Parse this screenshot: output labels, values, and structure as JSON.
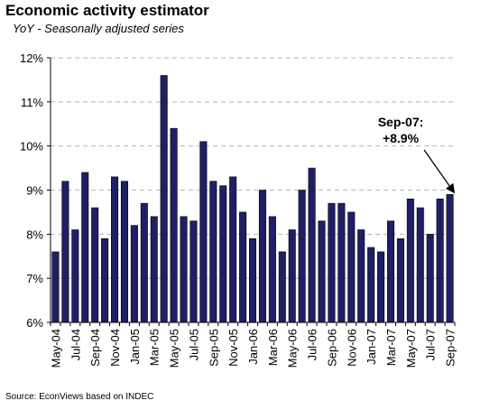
{
  "chart_data": {
    "type": "bar",
    "title": "Economic activity estimator",
    "subtitle": "YoY - Seasonally adjusted series",
    "source": "Source: EconViews based on INDEC",
    "x": [
      "May-04",
      "Jun-04",
      "Jul-04",
      "Aug-04",
      "Sep-04",
      "Oct-04",
      "Nov-04",
      "Dec-04",
      "Jan-05",
      "Feb-05",
      "Mar-05",
      "Apr-05",
      "May-05",
      "Jun-05",
      "Jul-05",
      "Aug-05",
      "Sep-05",
      "Oct-05",
      "Nov-05",
      "Dec-05",
      "Jan-06",
      "Feb-06",
      "Mar-06",
      "Apr-06",
      "May-06",
      "Jun-06",
      "Jul-06",
      "Aug-06",
      "Sep-06",
      "Oct-06",
      "Nov-06",
      "Dec-06",
      "Jan-07",
      "Feb-07",
      "Mar-07",
      "Apr-07",
      "May-07",
      "Jun-07",
      "Jul-07",
      "Aug-07",
      "Sep-07"
    ],
    "tick_labels": [
      "May-04",
      "Jul-04",
      "Sep-04",
      "Nov-04",
      "Jan-05",
      "Mar-05",
      "May-05",
      "Jul-05",
      "Sep-05",
      "Nov-05",
      "Jan-06",
      "Mar-06",
      "May-06",
      "Jul-06",
      "Sep-06",
      "Nov-06",
      "Jan-07",
      "Mar-07",
      "May-07",
      "Jul-07",
      "Sep-07"
    ],
    "values": [
      7.6,
      9.2,
      8.1,
      9.4,
      8.6,
      7.9,
      9.3,
      9.2,
      8.2,
      8.7,
      8.4,
      11.6,
      10.4,
      8.4,
      8.3,
      10.1,
      9.2,
      9.1,
      9.3,
      8.5,
      7.9,
      9.0,
      8.4,
      7.6,
      8.1,
      9.0,
      9.5,
      8.3,
      8.7,
      8.7,
      8.5,
      8.1,
      7.7,
      7.6,
      8.3,
      7.9,
      8.8,
      8.6,
      8.0,
      8.8,
      8.9
    ],
    "ylim": [
      6,
      12
    ],
    "yticks": [
      "6%",
      "7%",
      "8%",
      "9%",
      "10%",
      "11%",
      "12%"
    ],
    "grid": "horizontal dashed",
    "bar_color": "#1f1f66",
    "annotation": {
      "line1": "Sep-07:",
      "line2": "+8.9%"
    }
  }
}
